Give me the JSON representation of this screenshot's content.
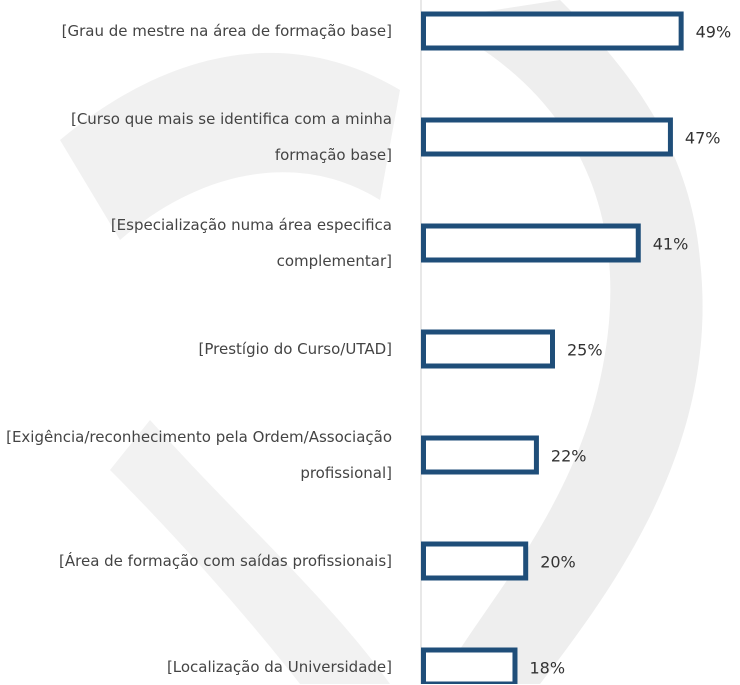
{
  "chart_data": {
    "type": "bar",
    "orientation": "horizontal",
    "categories": [
      "[Grau de mestre na área de formação base]",
      "[Curso que mais se identifica com a minha formação base]",
      "[Especialização numa área especifica complementar]",
      "[Prestígio do Curso/UTAD]",
      "[Exigência/reconhecimento pela Ordem/Associação profissional]",
      "[Área de formação com saídas profissionais]",
      "[Localização da Universidade]"
    ],
    "values": [
      49,
      47,
      41,
      25,
      22,
      20,
      18
    ],
    "value_labels": [
      "49%",
      "47%",
      "41%",
      "25%",
      "22%",
      "20%",
      "18%"
    ],
    "color": "#1f4e79",
    "xlim": [
      0,
      50
    ]
  }
}
